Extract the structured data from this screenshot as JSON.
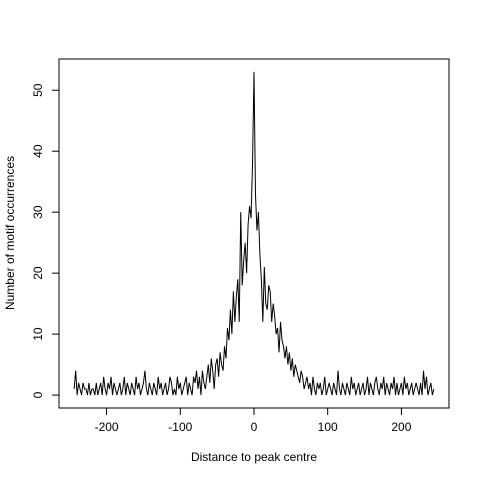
{
  "chart_data": {
    "type": "line",
    "x_label": "Distance to peak centre",
    "y_label": "Number of motif occurrences",
    "x": [
      -244,
      -242,
      -240,
      -238,
      -236,
      -234,
      -232,
      -230,
      -228,
      -226,
      -224,
      -222,
      -220,
      -218,
      -216,
      -214,
      -212,
      -210,
      -208,
      -206,
      -204,
      -202,
      -200,
      -198,
      -196,
      -194,
      -192,
      -190,
      -188,
      -186,
      -184,
      -182,
      -180,
      -178,
      -176,
      -174,
      -172,
      -170,
      -168,
      -166,
      -164,
      -162,
      -160,
      -158,
      -156,
      -154,
      -152,
      -150,
      -148,
      -146,
      -144,
      -142,
      -140,
      -138,
      -136,
      -134,
      -132,
      -130,
      -128,
      -126,
      -124,
      -122,
      -120,
      -118,
      -116,
      -114,
      -112,
      -110,
      -108,
      -106,
      -104,
      -102,
      -100,
      -98,
      -96,
      -94,
      -92,
      -90,
      -88,
      -86,
      -84,
      -82,
      -80,
      -78,
      -76,
      -74,
      -72,
      -70,
      -68,
      -66,
      -64,
      -62,
      -60,
      -58,
      -56,
      -54,
      -52,
      -50,
      -48,
      -46,
      -44,
      -42,
      -40,
      -38,
      -36,
      -34,
      -32,
      -30,
      -28,
      -26,
      -24,
      -22,
      -20,
      -18,
      -16,
      -14,
      -12,
      -10,
      -8,
      -6,
      -4,
      -2,
      0,
      2,
      4,
      6,
      8,
      10,
      12,
      14,
      16,
      18,
      20,
      22,
      24,
      26,
      28,
      30,
      32,
      34,
      36,
      38,
      40,
      42,
      44,
      46,
      48,
      50,
      52,
      54,
      56,
      58,
      60,
      62,
      64,
      66,
      68,
      70,
      72,
      74,
      76,
      78,
      80,
      82,
      84,
      86,
      88,
      90,
      92,
      94,
      96,
      98,
      100,
      102,
      104,
      106,
      108,
      110,
      112,
      114,
      116,
      118,
      120,
      122,
      124,
      126,
      128,
      130,
      132,
      134,
      136,
      138,
      140,
      142,
      144,
      146,
      148,
      150,
      152,
      154,
      156,
      158,
      160,
      162,
      164,
      166,
      168,
      170,
      172,
      174,
      176,
      178,
      180,
      182,
      184,
      186,
      188,
      190,
      192,
      194,
      196,
      198,
      200,
      202,
      204,
      206,
      208,
      210,
      212,
      214,
      216,
      218,
      220,
      222,
      224,
      226,
      228,
      230,
      232,
      234,
      236,
      238,
      240,
      242,
      244
    ],
    "series": [
      {
        "color": "#000000",
        "values": [
          1,
          4,
          0,
          2,
          1,
          0,
          2,
          1,
          1,
          0,
          2,
          0,
          1,
          1,
          0,
          2,
          0,
          1,
          2,
          0,
          3,
          1,
          0,
          2,
          1,
          3,
          0,
          2,
          1,
          0,
          1,
          2,
          0,
          1,
          3,
          0,
          2,
          1,
          0,
          2,
          1,
          0,
          3,
          1,
          2,
          0,
          1,
          2,
          4,
          1,
          0,
          2,
          1,
          0,
          2,
          1,
          0,
          3,
          1,
          2,
          0,
          1,
          2,
          0,
          1,
          3,
          2,
          0,
          1,
          0,
          3,
          1,
          2,
          0,
          1,
          2,
          3,
          0,
          2,
          1,
          0,
          3,
          2,
          4,
          1,
          3,
          0,
          4,
          2,
          1,
          3,
          5,
          2,
          6,
          4,
          1,
          5,
          6,
          3,
          7,
          5,
          4,
          8,
          6,
          11,
          9,
          14,
          10,
          17,
          12,
          16,
          19,
          12,
          30,
          18,
          22,
          25,
          20,
          28,
          31,
          29,
          38,
          53,
          33,
          27,
          30,
          23,
          19,
          12,
          21,
          15,
          14,
          18,
          17,
          12,
          15,
          13,
          10,
          11,
          7,
          12,
          9,
          8,
          6,
          8,
          5,
          7,
          4,
          6,
          3,
          5,
          4,
          3,
          2,
          4,
          3,
          1,
          2,
          3,
          1,
          2,
          0,
          3,
          1,
          0,
          2,
          1,
          2,
          0,
          1,
          3,
          0,
          1,
          2,
          1,
          0,
          2,
          1,
          0,
          4,
          1,
          0,
          2,
          1,
          0,
          2,
          1,
          0,
          3,
          1,
          2,
          0,
          1,
          2,
          0,
          1,
          2,
          0,
          1,
          3,
          0,
          2,
          1,
          0,
          2,
          3,
          1,
          0,
          2,
          1,
          3,
          0,
          2,
          1,
          0,
          2,
          1,
          3,
          0,
          2,
          0,
          1,
          2,
          0,
          3,
          1,
          2,
          0,
          1,
          2,
          0,
          1,
          2,
          1,
          0,
          2,
          0,
          4,
          1,
          3,
          0,
          1,
          2,
          0,
          1
        ]
      }
    ],
    "xlim": [
      -264.6,
      264.6
    ],
    "xticks": [
      -200,
      -100,
      0,
      100,
      200
    ],
    "ylim": [
      -2.12,
      55.12
    ],
    "yticks": [
      0,
      10,
      20,
      30,
      40,
      50
    ]
  }
}
